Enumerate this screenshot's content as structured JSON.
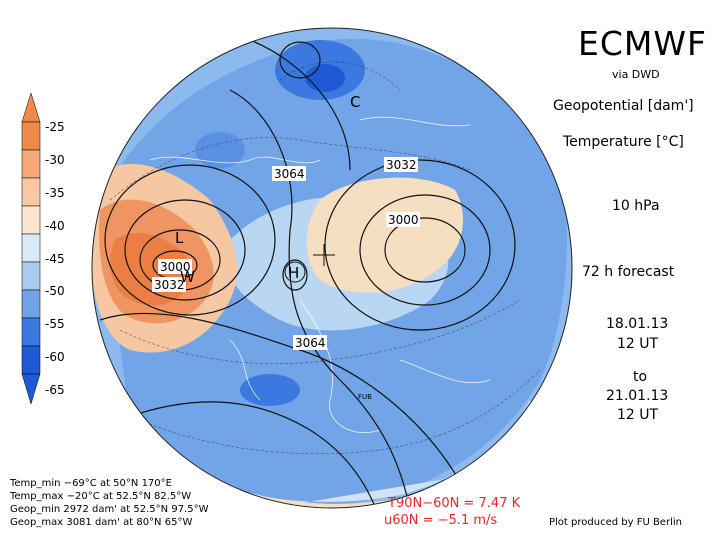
{
  "header": {
    "title": "ECMWF",
    "subtitle": "via DWD"
  },
  "variables": {
    "geopotential": "Geopotential [dam']",
    "temperature": "Temperature [°C]"
  },
  "level": "10 hPa",
  "forecast": "72 h forecast",
  "time": {
    "init_date": "18.01.13",
    "init_hour": "12 UT",
    "to": "to",
    "valid_date": "21.01.13",
    "valid_hour": "12 UT"
  },
  "colorbar": {
    "labels": [
      "-25",
      "-30",
      "-35",
      "-40",
      "-45",
      "-50",
      "-55",
      "-60",
      "-65"
    ],
    "colors": [
      "#f08a4b",
      "#f6a878",
      "#f9c8a3",
      "#fbe5cf",
      "#d9e9f6",
      "#a9cbee",
      "#6fa3e6",
      "#3b78e0",
      "#1f5ad6"
    ]
  },
  "contour_labels": [
    "3064",
    "3032",
    "3000",
    "3000",
    "3032",
    "3064"
  ],
  "pressure_centers": [
    "L",
    "W",
    "H",
    "C"
  ],
  "stats": {
    "temp_min": "Temp_min −69°C at 50°N 170°E",
    "temp_max": "Temp_max −20°C at 52.5°N 82.5°W",
    "geop_min": "Geop_min 2972 dam' at 52.5°N 97.5°W",
    "geop_max": "Geop_max 3081 dam' at 80°N 65°W"
  },
  "indices": {
    "t_line": "T90N−60N = 7.47 K",
    "u_line": "u60N = −5.1 m/s"
  },
  "station": "FUB",
  "credit": "Plot produced by FU Berlin"
}
